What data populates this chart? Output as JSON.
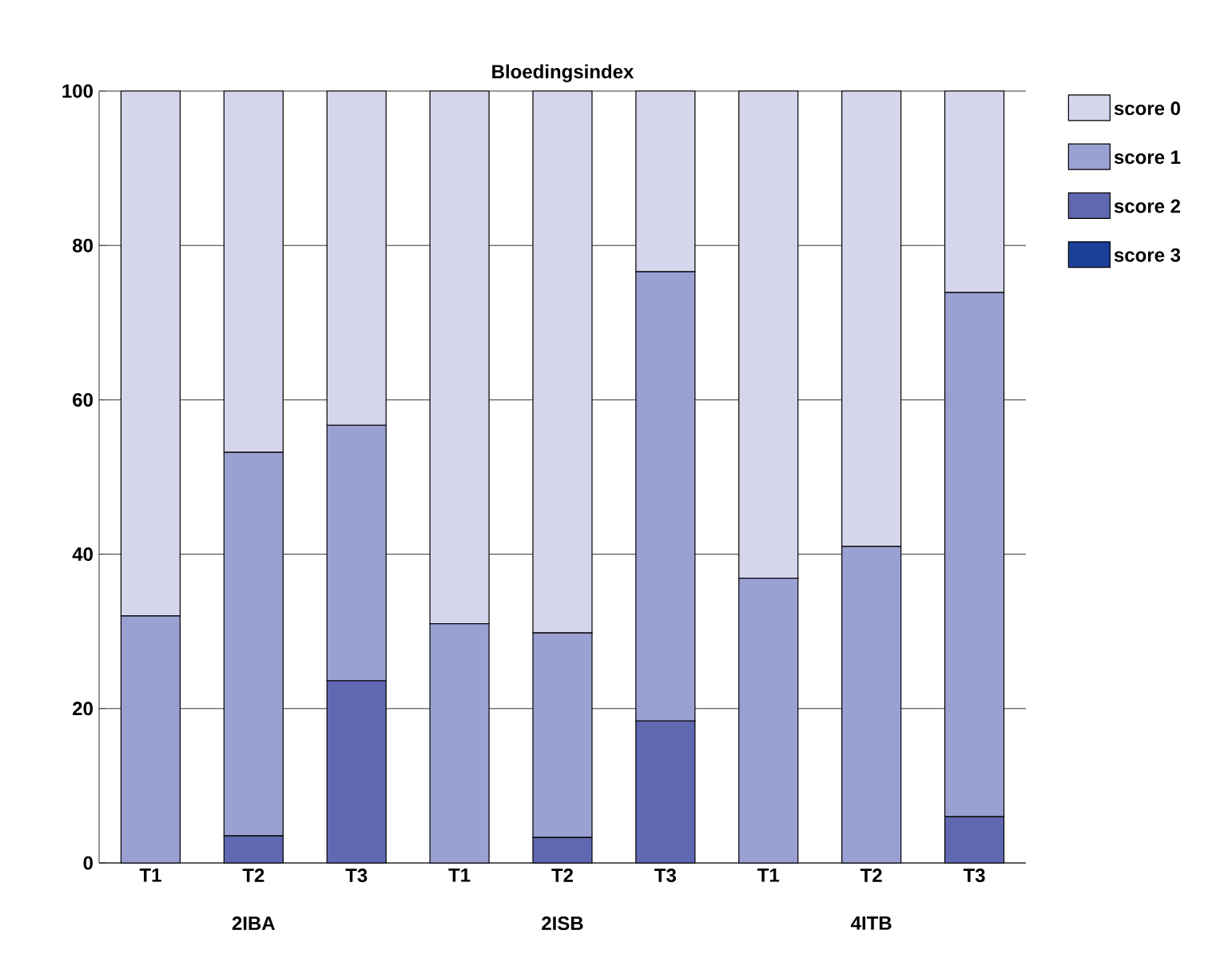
{
  "chart_data": {
    "type": "bar",
    "title": "Bloedingsindex",
    "stacked": true,
    "categories": [
      "T1",
      "T2",
      "T3",
      "T1",
      "T2",
      "T3",
      "T1",
      "T2",
      "T3"
    ],
    "series": [
      {
        "name": "score 3",
        "color": "#1c3f9a",
        "values": [
          0,
          0,
          0,
          0,
          0,
          0,
          0,
          0,
          0
        ]
      },
      {
        "name": "score 2",
        "color": "#5f68b0",
        "values": [
          0,
          3.5,
          23.6,
          0,
          3.3,
          18.4,
          0,
          0,
          6
        ]
      },
      {
        "name": "score 1",
        "color": "#9aa0d2",
        "values": [
          32,
          49.7,
          33.1,
          31,
          26.5,
          58.2,
          36.9,
          41,
          67.9
        ]
      },
      {
        "name": "score 0",
        "color": "#d5d5ec",
        "values": [
          68,
          46.8,
          43.3,
          69,
          70.2,
          23.4,
          63.1,
          59,
          26.1
        ]
      }
    ],
    "annotations": [
      "2IBA",
      "2ISB",
      "4ITB"
    ],
    "ylim": [
      0,
      100
    ],
    "yticks": [
      0,
      20,
      40,
      60,
      80,
      100
    ],
    "grid": "y",
    "legend": "top right"
  }
}
